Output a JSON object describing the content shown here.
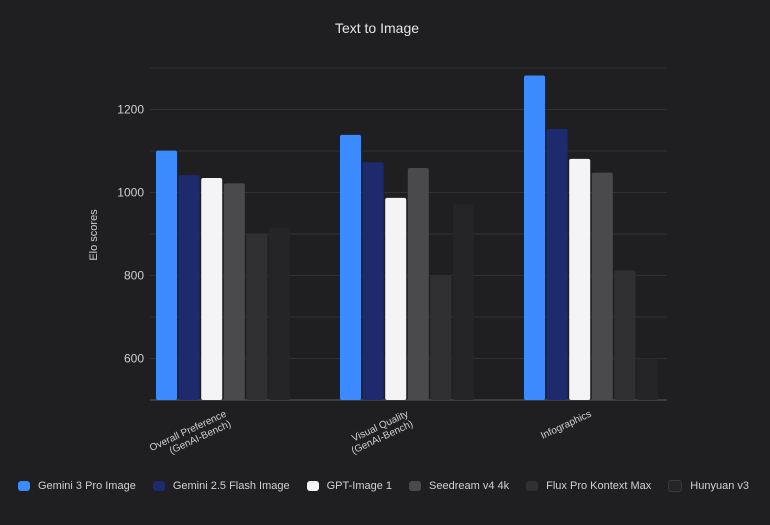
{
  "chart_data": {
    "type": "bar",
    "title": "Text to Image",
    "xlabel": "",
    "ylabel": "Elo scores",
    "ylim": [
      500,
      1300
    ],
    "yticks": [
      600,
      800,
      1000,
      1200
    ],
    "grid": true,
    "legend_position": "bottom",
    "categories": [
      [
        "Overall Preference",
        "(GenAI-Bench)"
      ],
      [
        "Visual Quality",
        "(GenAI-Bench)"
      ],
      [
        "Infographics"
      ]
    ],
    "series": [
      {
        "name": "Gemini 3 Pro Image",
        "color": "#3b8bff",
        "values": [
          1101,
          1139,
          1282
        ]
      },
      {
        "name": "Gemini 2.5 Flash Image",
        "color": "#1d2a6e",
        "values": [
          1042,
          1073,
          1153
        ]
      },
      {
        "name": "GPT-Image 1",
        "color": "#f4f4f7",
        "values": [
          1035,
          987,
          1081
        ]
      },
      {
        "name": "Seedream v4 4k",
        "color": "#4a4a4d",
        "values": [
          1022,
          1059,
          1048
        ]
      },
      {
        "name": "Flux Pro Kontext Max",
        "color": "#303033",
        "values": [
          900,
          800,
          812
        ]
      },
      {
        "name": "Hunyuan v3",
        "color": "#252528",
        "values": [
          915,
          971,
          600
        ]
      }
    ]
  }
}
